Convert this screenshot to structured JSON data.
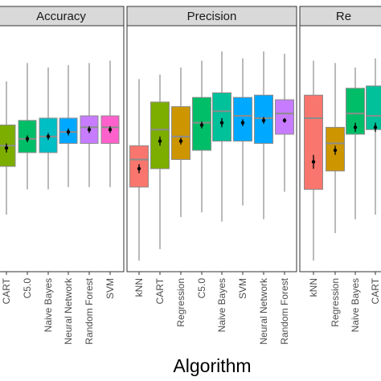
{
  "chart_data": {
    "type": "box",
    "xlabel": "Algorithm",
    "ylim": [
      0,
      1
    ],
    "grid": false,
    "legend": "none",
    "panels": [
      {
        "title": "Accuracy",
        "boxes": [
          {
            "label": "CART",
            "color": "#7CAE00",
            "whisker_low": 0.22,
            "q1": 0.43,
            "median": 0.52,
            "q3": 0.61,
            "whisker_high": 0.8,
            "mean": 0.51,
            "se": 0.02
          },
          {
            "label": "C5.0",
            "color": "#00BE67",
            "whisker_low": 0.33,
            "q1": 0.49,
            "median": 0.55,
            "q3": 0.63,
            "whisker_high": 0.88,
            "mean": 0.55,
            "se": 0.015
          },
          {
            "label": "Naive Bayes",
            "color": "#00BFC4",
            "whisker_low": 0.33,
            "q1": 0.49,
            "median": 0.56,
            "q3": 0.64,
            "whisker_high": 0.86,
            "mean": 0.56,
            "se": 0.015
          },
          {
            "label": "Neural Network",
            "color": "#00A9FF",
            "whisker_low": 0.34,
            "q1": 0.53,
            "median": 0.58,
            "q3": 0.64,
            "whisker_high": 0.87,
            "mean": 0.58,
            "se": 0.015
          },
          {
            "label": "Random Forest",
            "color": "#C77CFF",
            "whisker_low": 0.34,
            "q1": 0.53,
            "median": 0.6,
            "q3": 0.65,
            "whisker_high": 0.88,
            "mean": 0.59,
            "se": 0.015
          },
          {
            "label": "SVM",
            "color": "#FF61CC",
            "whisker_low": 0.34,
            "q1": 0.53,
            "median": 0.6,
            "q3": 0.65,
            "whisker_high": 0.89,
            "mean": 0.59,
            "se": 0.015
          }
        ]
      },
      {
        "title": "Precision",
        "boxes": [
          {
            "label": "kNN",
            "color": "#F8766D",
            "whisker_low": 0.02,
            "q1": 0.34,
            "median": 0.46,
            "q3": 0.52,
            "whisker_high": 0.81,
            "mean": 0.42,
            "se": 0.02
          },
          {
            "label": "CART",
            "color": "#7CAE00",
            "whisker_low": 0.07,
            "q1": 0.42,
            "median": 0.59,
            "q3": 0.71,
            "whisker_high": 0.83,
            "mean": 0.54,
            "se": 0.02
          },
          {
            "label": "Regression",
            "color": "#CD9600",
            "whisker_low": 0.21,
            "q1": 0.46,
            "median": 0.56,
            "q3": 0.69,
            "whisker_high": 0.86,
            "mean": 0.54,
            "se": 0.015
          },
          {
            "label": "C5.0",
            "color": "#00BE67",
            "whisker_low": 0.23,
            "q1": 0.5,
            "median": 0.62,
            "q3": 0.73,
            "whisker_high": 0.89,
            "mean": 0.61,
            "se": 0.015
          },
          {
            "label": "Naive Bayes",
            "color": "#00C19A",
            "whisker_low": 0.19,
            "q1": 0.54,
            "median": 0.67,
            "q3": 0.75,
            "whisker_high": 0.93,
            "mean": 0.62,
            "se": 0.02
          },
          {
            "label": "SVM",
            "color": "#00A9FF",
            "whisker_low": 0.26,
            "q1": 0.54,
            "median": 0.65,
            "q3": 0.73,
            "whisker_high": 0.9,
            "mean": 0.62,
            "se": 0.015
          },
          {
            "label": "Neural Network",
            "color": "#00A9FF",
            "whisker_low": 0.2,
            "q1": 0.53,
            "median": 0.64,
            "q3": 0.74,
            "whisker_high": 0.93,
            "mean": 0.63,
            "se": 0.015
          },
          {
            "label": "Random Forest",
            "color": "#C77CFF",
            "whisker_low": 0.32,
            "q1": 0.57,
            "median": 0.66,
            "q3": 0.72,
            "whisker_high": 0.92,
            "mean": 0.63,
            "se": 0.01
          }
        ]
      },
      {
        "title": "Re",
        "boxes": [
          {
            "label": "kNN",
            "color": "#F8766D",
            "whisker_low": 0.02,
            "q1": 0.33,
            "median": 0.64,
            "q3": 0.74,
            "whisker_high": 0.89,
            "mean": 0.45,
            "se": 0.03
          },
          {
            "label": "Regression",
            "color": "#CD9600",
            "whisker_low": 0.14,
            "q1": 0.41,
            "median": 0.53,
            "q3": 0.6,
            "whisker_high": 0.88,
            "mean": 0.5,
            "se": 0.02
          },
          {
            "label": "Naive Bayes",
            "color": "#00BE67",
            "whisker_low": 0.2,
            "q1": 0.57,
            "median": 0.66,
            "q3": 0.77,
            "whisker_high": 0.86,
            "mean": 0.6,
            "se": 0.02
          },
          {
            "label": "CART",
            "color": "#00C19A",
            "whisker_low": 0.22,
            "q1": 0.59,
            "median": 0.65,
            "q3": 0.78,
            "whisker_high": 0.9,
            "mean": 0.6,
            "se": 0.02
          }
        ]
      }
    ]
  }
}
